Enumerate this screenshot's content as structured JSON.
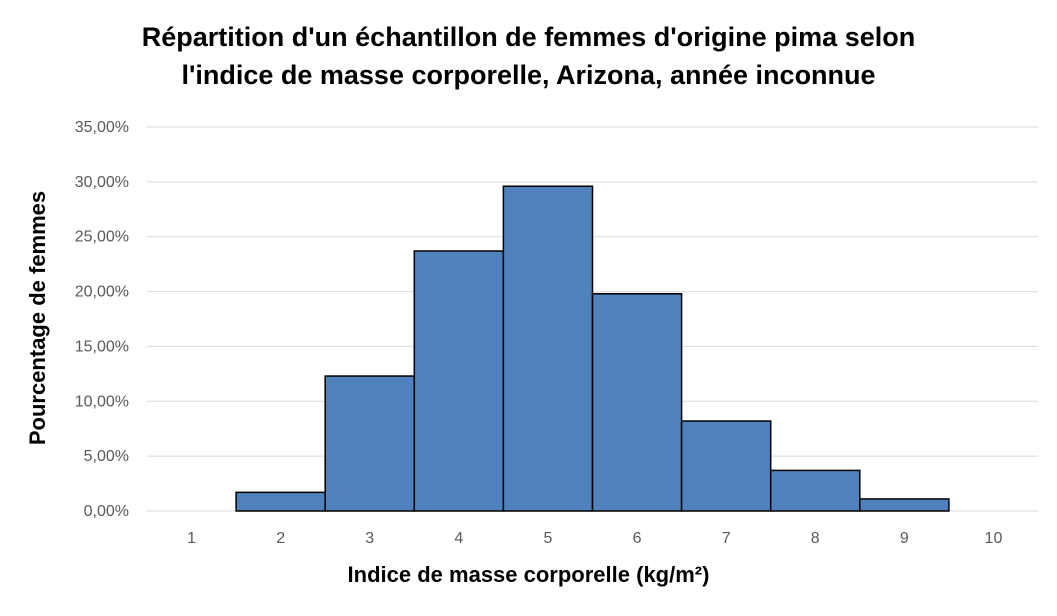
{
  "chart_data": {
    "type": "bar",
    "title_lines": [
      "Répartition d'un échantillon de femmes d'origine pima selon",
      "l'indice de masse corporelle, Arizona, année inconnue"
    ],
    "xlabel": "Indice de masse corporelle (kg/m²)",
    "ylabel": "Pourcentage de femmes",
    "categories": [
      "1",
      "2",
      "3",
      "4",
      "5",
      "6",
      "7",
      "8",
      "9",
      "10"
    ],
    "values": [
      0.0,
      1.7,
      12.3,
      23.7,
      29.6,
      19.8,
      8.2,
      3.7,
      1.1,
      0.0
    ],
    "yticks": [
      "0,00%",
      "5,00%",
      "10,00%",
      "15,00%",
      "20,00%",
      "25,00%",
      "30,00%",
      "35,00%"
    ],
    "ylim": [
      0,
      35
    ],
    "grid": true,
    "bar_gap": 0,
    "colors": {
      "bar": "#4f81bd",
      "bar_edge": "#000000",
      "grid": "#d9d9d9"
    }
  }
}
